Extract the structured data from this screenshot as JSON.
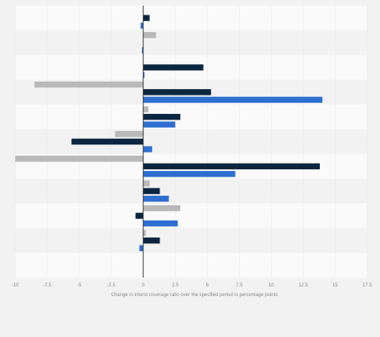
{
  "chart_data": {
    "type": "bar",
    "orientation": "horizontal",
    "title": "",
    "xlabel": "Change in interst coverage ratio over the specified period in percentage points",
    "ylabel": "",
    "xlim": [
      -10,
      17.5
    ],
    "x_ticks": [
      "-10",
      "-7.5",
      "-5",
      "-2.5",
      "0",
      "2.5",
      "5",
      "7.5",
      "10",
      "12.5",
      "15",
      "17.5"
    ],
    "x_tick_values": [
      -10,
      -7.5,
      -5,
      -2.5,
      0,
      2.5,
      5,
      7.5,
      10,
      12.5,
      15,
      17.5
    ],
    "grid": "vertical",
    "legend": "none",
    "categories": [
      "",
      "",
      "",
      "",
      "",
      "",
      "",
      "",
      "",
      "",
      ""
    ],
    "series": [
      {
        "color": "#b9b9b9",
        "values": [
          0,
          1.0,
          0,
          -8.5,
          0.4,
          -2.2,
          -10,
          0.5,
          2.9,
          0.2,
          0
        ]
      },
      {
        "color": "#0d2640",
        "values": [
          0.5,
          0,
          4.7,
          5.3,
          2.9,
          -5.6,
          13.8,
          1.3,
          -0.6,
          1.3,
          0
        ]
      },
      {
        "color": "#2f6fd1",
        "values": [
          -0.2,
          -0.1,
          0.1,
          14.0,
          2.5,
          0.7,
          7.2,
          2.0,
          2.7,
          -0.3,
          0
        ]
      }
    ],
    "colors": {
      "background": "#f2f2f2",
      "band_light": "#fafafa",
      "band_dark": "#f2f2f2",
      "gridline": "#dcdcdc",
      "zero_line": "#3a3a3a"
    }
  }
}
